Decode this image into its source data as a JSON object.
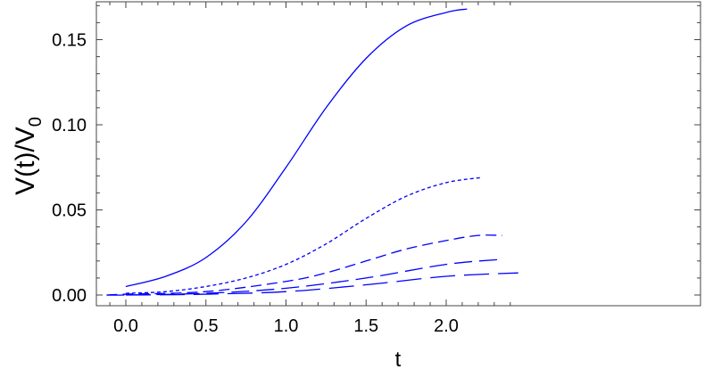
{
  "chart_data": {
    "type": "line",
    "title": "",
    "xlabel": "t",
    "ylabel": "V(t)/V",
    "ylabel_subscript": "0",
    "xlim": [
      -0.15,
      2.43
    ],
    "ylim": [
      -0.006,
      0.172
    ],
    "xticks": [
      "0.0",
      "0.5",
      "1.0",
      "1.5",
      "2.0"
    ],
    "yticks": [
      "0.00",
      "0.05",
      "0.10",
      "0.15"
    ],
    "grid": false,
    "color": "#0000ff",
    "series": [
      {
        "name": "solid",
        "dash": "solid",
        "x": [
          0,
          0.25,
          0.5,
          0.75,
          1.0,
          1.25,
          1.5,
          1.75,
          2.0,
          2.13
        ],
        "y": [
          0.005,
          0.011,
          0.022,
          0.043,
          0.075,
          0.11,
          0.139,
          0.158,
          0.166,
          0.168
        ]
      },
      {
        "name": "short-dash",
        "dash": "short",
        "x": [
          0,
          0.25,
          0.5,
          0.75,
          1.0,
          1.25,
          1.5,
          1.75,
          2.0,
          2.22
        ],
        "y": [
          0.001,
          0.002,
          0.005,
          0.01,
          0.018,
          0.03,
          0.045,
          0.058,
          0.066,
          0.069
        ]
      },
      {
        "name": "medium-dash",
        "dash": "medium",
        "x": [
          -0.12,
          0,
          0.5,
          1.0,
          1.25,
          1.5,
          1.75,
          2.0,
          2.2,
          2.35
        ],
        "y": [
          0,
          0.0005,
          0.002,
          0.008,
          0.013,
          0.02,
          0.027,
          0.032,
          0.035,
          0.035
        ]
      },
      {
        "name": "long-dash",
        "dash": "long",
        "x": [
          -0.12,
          0,
          0.5,
          1.0,
          1.5,
          2.0,
          2.35
        ],
        "y": [
          0,
          0,
          0.001,
          0.004,
          0.01,
          0.018,
          0.021
        ]
      },
      {
        "name": "longer-dash",
        "dash": "longer",
        "x": [
          0,
          0.5,
          1.0,
          1.5,
          2.0,
          2.45
        ],
        "y": [
          0,
          0.0005,
          0.002,
          0.006,
          0.011,
          0.013
        ]
      }
    ]
  }
}
